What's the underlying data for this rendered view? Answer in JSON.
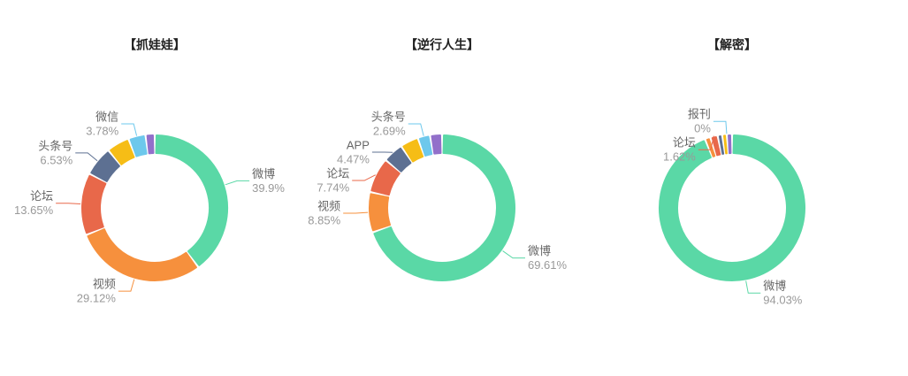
{
  "chart_data": [
    {
      "type": "pie",
      "title": "【抓娃娃】",
      "categories": [
        "微博",
        "视频",
        "论坛",
        "头条号",
        null,
        "微信",
        null
      ],
      "values": [
        39.9,
        29.12,
        13.65,
        6.53,
        5.0,
        3.78,
        2.02
      ],
      "value_labels": [
        "39.9%",
        "29.12%",
        "13.65%",
        "6.53%",
        null,
        "3.78%",
        null
      ],
      "colors": [
        "#5ad8a6",
        "#f6903d",
        "#e8684a",
        "#5d7092",
        "#f6bd16",
        "#6dc8ec",
        "#9270ca"
      ]
    },
    {
      "type": "pie",
      "title": "【逆行人生】",
      "categories": [
        "微博",
        "视频",
        "论坛",
        "APP",
        null,
        "头条号",
        null
      ],
      "values": [
        69.61,
        8.85,
        7.74,
        4.47,
        4.0,
        2.69,
        2.64
      ],
      "value_labels": [
        "69.61%",
        "8.85%",
        "7.74%",
        "4.47%",
        null,
        "2.69%",
        null
      ],
      "colors": [
        "#5ad8a6",
        "#f6903d",
        "#e8684a",
        "#5d7092",
        "#f6bd16",
        "#6dc8ec",
        "#9270ca"
      ]
    },
    {
      "type": "pie",
      "title": "【解密】",
      "categories": [
        "微博",
        null,
        "论坛",
        null,
        null,
        "报刊",
        null
      ],
      "values": [
        94.03,
        1.2,
        1.62,
        1.0,
        1.0,
        0,
        1.15
      ],
      "value_labels": [
        "94.03%",
        null,
        "1.62%",
        null,
        null,
        "0%",
        null
      ],
      "colors": [
        "#5ad8a6",
        "#f6903d",
        "#e8684a",
        "#5d7092",
        "#f6bd16",
        "#6dc8ec",
        "#9270ca"
      ]
    }
  ]
}
